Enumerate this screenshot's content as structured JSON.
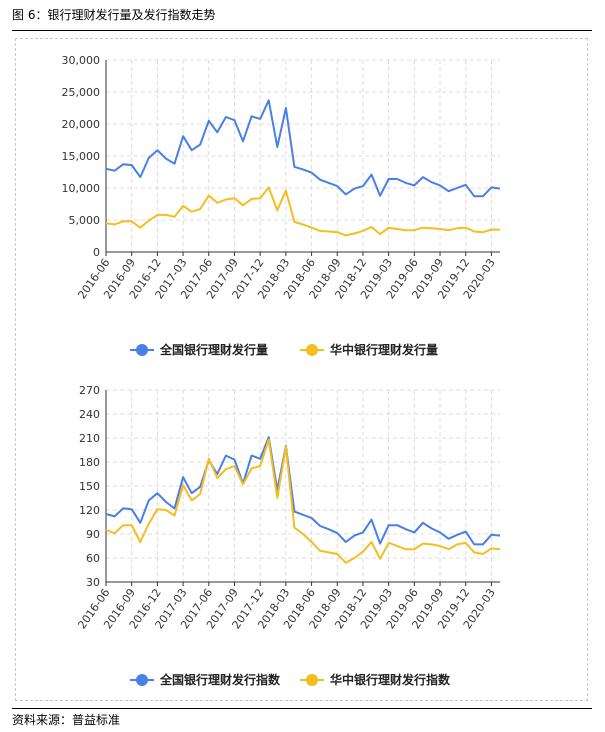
{
  "figure": {
    "title": "图 6：银行理财发行量及发行指数走势",
    "source": "资料来源：普益标准"
  },
  "colors": {
    "national": "#4a7ee8",
    "central": "#f5bd1f",
    "grid": "#dcdcdc",
    "axis": "#333333"
  },
  "chart_data": [
    {
      "type": "line",
      "x_tick_labels": [
        "2016-06",
        "2016-09",
        "2016-12",
        "2017-03",
        "2017-06",
        "2017-09",
        "2017-12",
        "2018-03",
        "2018-06",
        "2018-09",
        "2018-12",
        "2019-03",
        "2019-06",
        "2019-09",
        "2019-12",
        "2020-03"
      ],
      "ylim": [
        0,
        30000
      ],
      "y_ticks": [
        "0",
        "5,000",
        "10,000",
        "15,000",
        "20,000",
        "25,000",
        "30,000"
      ],
      "grid": true,
      "legend_position": "bottom",
      "series": [
        {
          "name": "全国银行理财发行量",
          "values": [
            13000,
            12700,
            13700,
            13600,
            11700,
            14700,
            15900,
            14600,
            13800,
            18100,
            15900,
            16800,
            20500,
            18700,
            21100,
            20600,
            17300,
            21200,
            20800,
            23700,
            16400,
            22500,
            13300,
            12900,
            12400,
            11300,
            10800,
            10300,
            9000,
            9900,
            10300,
            12100,
            8800,
            11400,
            11400,
            10800,
            10400,
            11700,
            10900,
            10400,
            9500,
            10000,
            10500,
            8700,
            8700,
            10100,
            9900
          ]
        },
        {
          "name": "华中银行理财发行量",
          "values": [
            4500,
            4300,
            4800,
            4800,
            3800,
            4900,
            5800,
            5800,
            5500,
            7200,
            6300,
            6700,
            8800,
            7700,
            8200,
            8400,
            7300,
            8300,
            8400,
            10100,
            6500,
            9600,
            4700,
            4300,
            3800,
            3300,
            3200,
            3100,
            2600,
            2900,
            3300,
            3900,
            2800,
            3800,
            3600,
            3400,
            3400,
            3800,
            3700,
            3600,
            3400,
            3700,
            3800,
            3200,
            3100,
            3500,
            3500
          ]
        }
      ]
    },
    {
      "type": "line",
      "x_tick_labels": [
        "2016-06",
        "2016-09",
        "2016-12",
        "2017-03",
        "2017-06",
        "2017-09",
        "2017-12",
        "2018-03",
        "2018-06",
        "2018-09",
        "2018-12",
        "2019-03",
        "2019-06",
        "2019-09",
        "2019-12",
        "2020-03"
      ],
      "ylim": [
        30,
        270
      ],
      "y_ticks": [
        "30",
        "60",
        "90",
        "120",
        "150",
        "180",
        "210",
        "240",
        "270"
      ],
      "grid": true,
      "legend_position": "bottom",
      "series": [
        {
          "name": "全国银行理财发行指数",
          "values": [
            115,
            112,
            122,
            121,
            104,
            132,
            141,
            130,
            122,
            161,
            141,
            149,
            182,
            165,
            188,
            183,
            153,
            188,
            184,
            211,
            145,
            200,
            118,
            114,
            110,
            100,
            96,
            91,
            80,
            88,
            92,
            108,
            78,
            101,
            101,
            96,
            92,
            104,
            97,
            92,
            84,
            89,
            93,
            77,
            77,
            89,
            88
          ]
        },
        {
          "name": "华中银行理财发行指数",
          "values": [
            95,
            91,
            101,
            101,
            80,
            103,
            121,
            120,
            113,
            151,
            132,
            140,
            184,
            160,
            171,
            175,
            152,
            172,
            175,
            208,
            135,
            199,
            98,
            90,
            80,
            69,
            67,
            65,
            54,
            60,
            68,
            80,
            59,
            79,
            75,
            71,
            71,
            78,
            77,
            75,
            71,
            77,
            79,
            67,
            65,
            72,
            71
          ]
        }
      ]
    }
  ]
}
